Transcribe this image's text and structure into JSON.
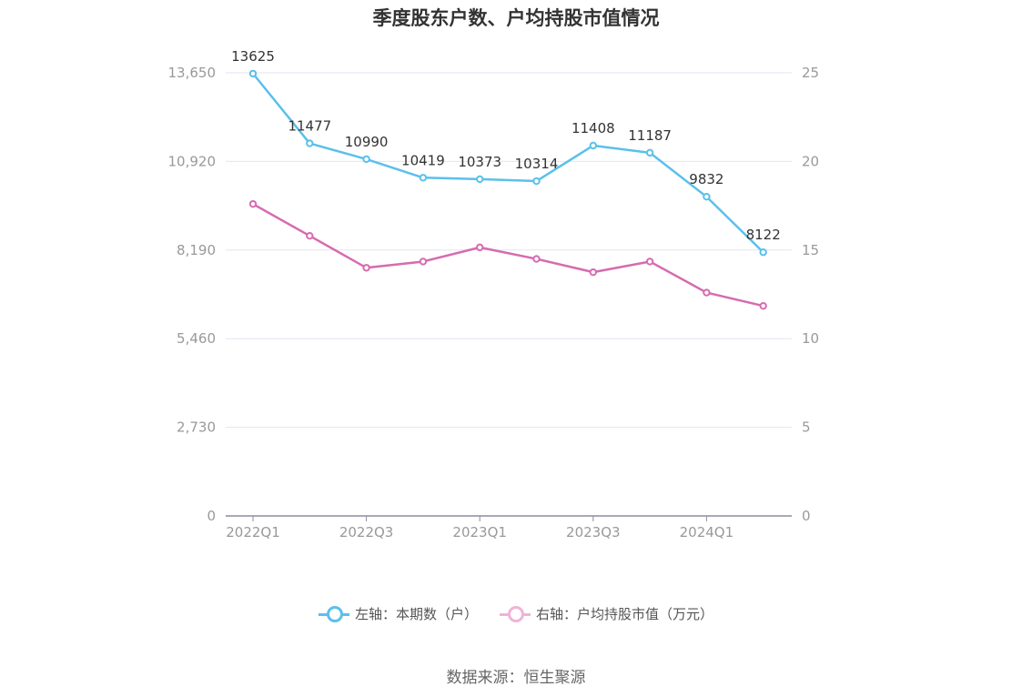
{
  "chart_data": {
    "type": "line",
    "title": "季度股东户数、户均持股市值情况",
    "categories": [
      "2022Q1",
      "2022Q2",
      "2022Q3",
      "2022Q4",
      "2023Q1",
      "2023Q2",
      "2023Q3",
      "2023Q4",
      "2024Q1",
      "2024Q2"
    ],
    "x_tick_labels": [
      "2022Q1",
      "2022Q3",
      "2023Q1",
      "2023Q3",
      "2024Q1"
    ],
    "left_axis": {
      "ylim": [
        0,
        13650
      ],
      "ticks": [
        "0",
        "2,730",
        "5,460",
        "8,190",
        "10,920",
        "13,650"
      ]
    },
    "right_axis": {
      "ylim": [
        0,
        25
      ],
      "ticks": [
        "0",
        "5",
        "10",
        "15",
        "20",
        "25"
      ]
    },
    "grid": true,
    "legend_position": "bottom",
    "series": [
      {
        "name": "左轴：本期数（户）",
        "axis": "left",
        "color": "#5bc0eb",
        "values": [
          13625,
          11477,
          10990,
          10419,
          10373,
          10314,
          11408,
          11187,
          9832,
          8122
        ],
        "labels": [
          "13625",
          "11477",
          "10990",
          "10419",
          "10373",
          "10314",
          "11408",
          "11187",
          "9832",
          "8122"
        ]
      },
      {
        "name": "右轴：户均持股市值（万元）",
        "axis": "right",
        "color": "#d66bb0",
        "values": [
          17.6,
          15.8,
          14.0,
          14.35,
          15.15,
          14.5,
          13.75,
          14.35,
          12.6,
          11.85
        ]
      }
    ]
  },
  "source": "数据来源：恒生聚源"
}
